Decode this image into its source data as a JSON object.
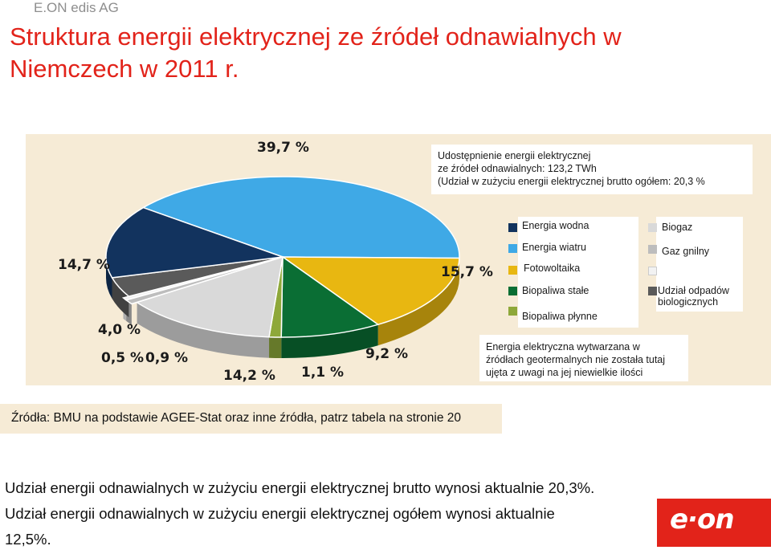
{
  "company": "E.ON edis AG",
  "title": "Struktura energii elektrycznej ze źródeł odnawialnych w Niemczech w 2011 r.",
  "info_box": "Udostępnienie energii elektrycznej\nze źródeł odnawialnych: 123,2 TWh\n(Udział w zużyciu energii elektrycznej brutto ogółem: 20,3 %",
  "geo_note": "Energia elektryczna wytwarzana w\nźródłach geotermalnych nie została tutaj\nujęta z uwagi na jej niewielkie ilości",
  "source": "Źródła: BMU na podstawie AGEE-Stat oraz inne źródła, patrz tabela na stronie 20",
  "footer": {
    "line1": "Udział energii odnawialnych w zużyciu energii elektrycznej brutto wynosi aktualnie 20,3%.",
    "line2": "Udział energii odnawialnych w zużyciu energii elektrycznej ogółem wynosi aktualnie",
    "line3": "12,5%."
  },
  "logo_text": "e·on",
  "legend": [
    {
      "label": "Energia wodna",
      "color": "#12335e"
    },
    {
      "label": "Energia wiatru",
      "color": "#3fa9e6"
    },
    {
      "label": "Fotowoltaika",
      "color": "#e8b711"
    },
    {
      "label": "Biopaliwa stałe",
      "color": "#0a6e34"
    },
    {
      "label": "Biopaliwa płynne",
      "color": "#8ea83a"
    },
    {
      "label": "Biogaz",
      "color": "#d9d9d9"
    },
    {
      "label": "Gaz gnilny",
      "color": "#bdbdbd"
    },
    {
      "label": "",
      "color": "#f2f2f2"
    },
    {
      "label": "Udział odpadów\nbiologicznych",
      "color": "#5a5a5a"
    }
  ],
  "chart_data": {
    "type": "pie",
    "title": "Udostępnienie energii elektrycznej ze źródeł odnawialnych: 123,2 TWh",
    "slices": [
      {
        "label": "39,7 %",
        "value": 39.7,
        "color": "#3fa9e6"
      },
      {
        "label": "15,7 %",
        "value": 15.7,
        "color": "#e8b711"
      },
      {
        "label": "9,2 %",
        "value": 9.2,
        "color": "#0a6e34"
      },
      {
        "label": "1,1 %",
        "value": 1.1,
        "color": "#8ea83a"
      },
      {
        "label": "14,2 %",
        "value": 14.2,
        "color": "#d9d9d9"
      },
      {
        "label": "0,9 %",
        "value": 0.9,
        "color": "#bdbdbd"
      },
      {
        "label": "0,5 %",
        "value": 0.5,
        "color": "#f2f2f2"
      },
      {
        "label": "4,0 %",
        "value": 4.0,
        "color": "#5a5a5a"
      },
      {
        "label": "14,7 %",
        "value": 14.7,
        "color": "#12335e"
      }
    ]
  }
}
